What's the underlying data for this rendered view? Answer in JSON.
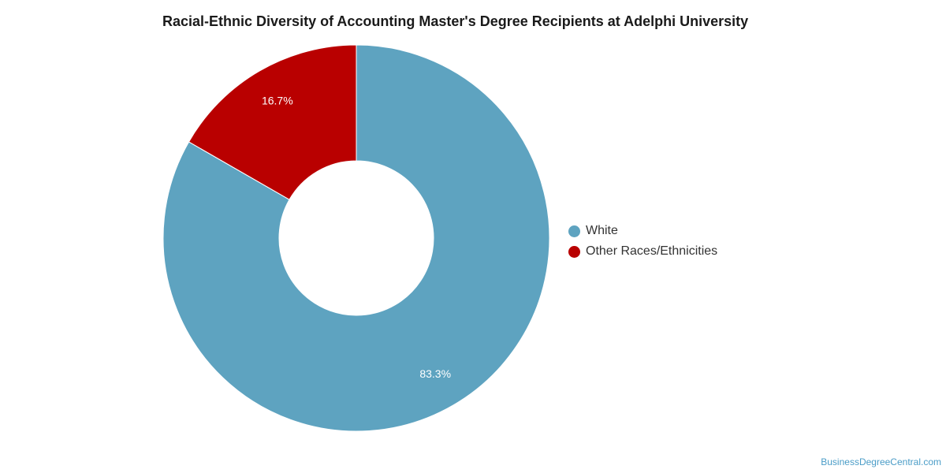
{
  "chart_data": {
    "type": "pie",
    "title": "Racial-Ethnic Diversity of Accounting Master's Degree Recipients at Adelphi University",
    "style": "donut",
    "legend_position": "right",
    "categories": [
      "White",
      "Other Races/Ethnicities"
    ],
    "values": [
      83.3,
      16.7
    ],
    "labels": [
      "83.3%",
      "16.7%"
    ],
    "colors": [
      "#5ea3c0",
      "#b90000"
    ]
  },
  "watermark": "BusinessDegreeCentral.com"
}
